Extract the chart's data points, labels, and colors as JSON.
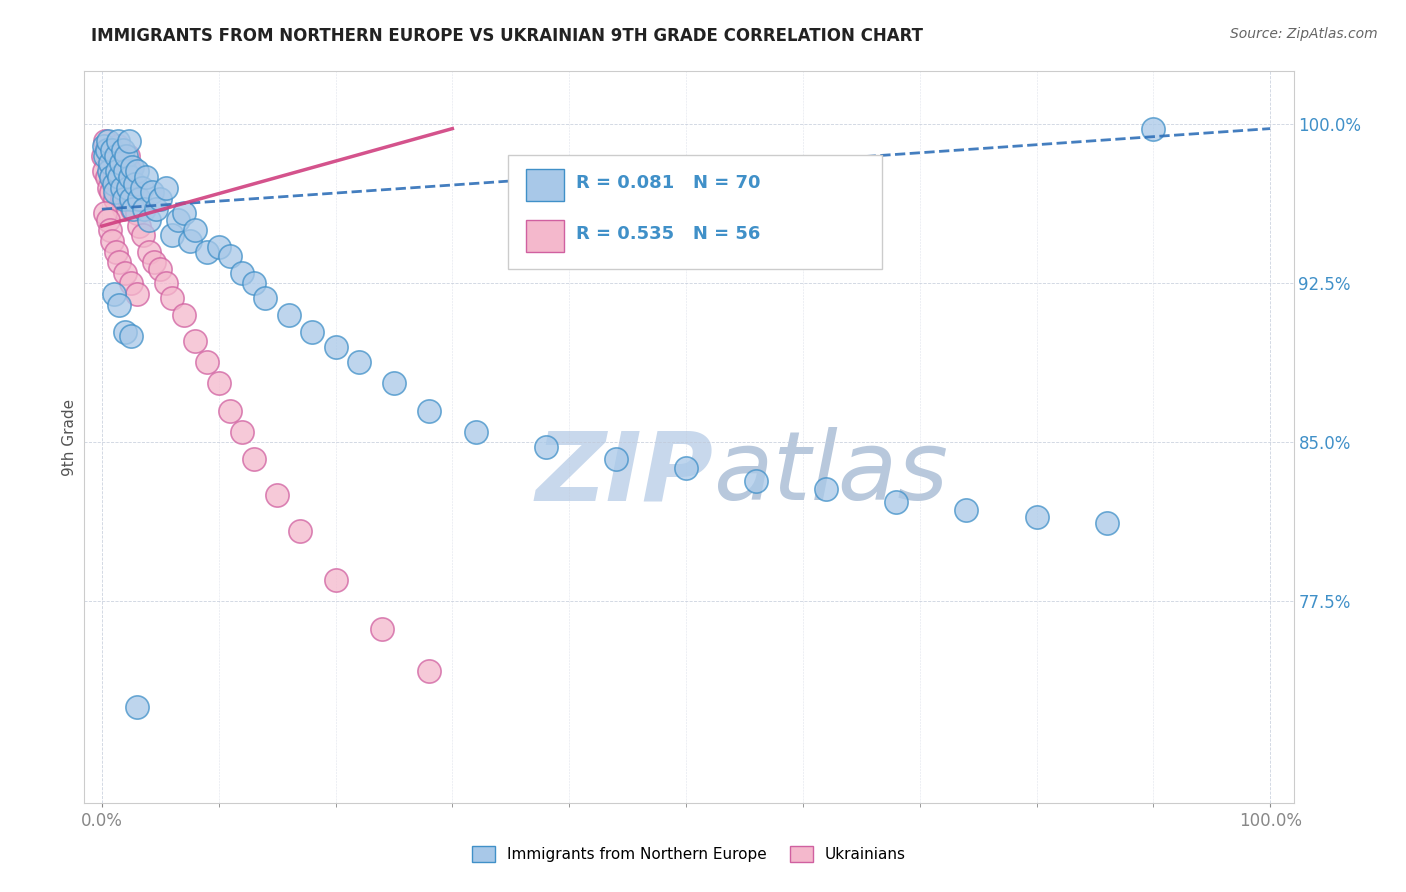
{
  "title": "IMMIGRANTS FROM NORTHERN EUROPE VS UKRAINIAN 9TH GRADE CORRELATION CHART",
  "source": "Source: ZipAtlas.com",
  "ylabel": "9th Grade",
  "R1": 0.081,
  "N1": 70,
  "R2": 0.535,
  "N2": 56,
  "color1": "#a8c8e8",
  "color2": "#f4b8cc",
  "edge_color1": "#4090c8",
  "edge_color2": "#d060a0",
  "trend_color1": "#3070b8",
  "trend_color2": "#d04080",
  "label_color": "#4090c8",
  "ytick_color": "#4090c8",
  "watermark_color": "#c8d8ec",
  "legend_label1": "Immigrants from Northern Europe",
  "legend_label2": "Ukrainians",
  "ytick_labels": [
    "100.0%",
    "92.5%",
    "85.0%",
    "77.5%"
  ],
  "ytick_values": [
    1.0,
    0.925,
    0.85,
    0.775
  ],
  "blue_x": [
    0.002,
    0.003,
    0.004,
    0.005,
    0.006,
    0.007,
    0.008,
    0.009,
    0.01,
    0.011,
    0.012,
    0.013,
    0.014,
    0.015,
    0.016,
    0.017,
    0.018,
    0.019,
    0.02,
    0.021,
    0.022,
    0.023,
    0.024,
    0.025,
    0.026,
    0.027,
    0.028,
    0.03,
    0.032,
    0.034,
    0.036,
    0.038,
    0.04,
    0.043,
    0.046,
    0.05,
    0.055,
    0.06,
    0.065,
    0.07,
    0.075,
    0.08,
    0.09,
    0.1,
    0.11,
    0.12,
    0.13,
    0.14,
    0.16,
    0.18,
    0.2,
    0.22,
    0.25,
    0.28,
    0.32,
    0.38,
    0.44,
    0.5,
    0.56,
    0.62,
    0.68,
    0.74,
    0.8,
    0.86,
    0.9,
    0.01,
    0.015,
    0.02,
    0.025,
    0.03
  ],
  "blue_y": [
    0.99,
    0.985,
    0.988,
    0.992,
    0.978,
    0.982,
    0.975,
    0.988,
    0.972,
    0.968,
    0.985,
    0.978,
    0.992,
    0.975,
    0.982,
    0.97,
    0.988,
    0.965,
    0.978,
    0.985,
    0.97,
    0.992,
    0.975,
    0.965,
    0.98,
    0.96,
    0.972,
    0.978,
    0.965,
    0.97,
    0.96,
    0.975,
    0.955,
    0.968,
    0.96,
    0.965,
    0.97,
    0.948,
    0.955,
    0.958,
    0.945,
    0.95,
    0.94,
    0.942,
    0.938,
    0.93,
    0.925,
    0.918,
    0.91,
    0.902,
    0.895,
    0.888,
    0.878,
    0.865,
    0.855,
    0.848,
    0.842,
    0.838,
    0.832,
    0.828,
    0.822,
    0.818,
    0.815,
    0.812,
    0.998,
    0.92,
    0.915,
    0.902,
    0.9,
    0.725
  ],
  "pink_x": [
    0.001,
    0.002,
    0.003,
    0.004,
    0.005,
    0.006,
    0.007,
    0.008,
    0.009,
    0.01,
    0.011,
    0.012,
    0.013,
    0.014,
    0.015,
    0.016,
    0.017,
    0.018,
    0.019,
    0.02,
    0.021,
    0.022,
    0.023,
    0.024,
    0.025,
    0.026,
    0.028,
    0.03,
    0.032,
    0.035,
    0.04,
    0.045,
    0.05,
    0.055,
    0.06,
    0.07,
    0.08,
    0.09,
    0.1,
    0.11,
    0.12,
    0.13,
    0.15,
    0.17,
    0.2,
    0.24,
    0.28,
    0.003,
    0.005,
    0.007,
    0.009,
    0.012,
    0.015,
    0.02,
    0.025,
    0.03
  ],
  "pink_y": [
    0.985,
    0.978,
    0.992,
    0.975,
    0.988,
    0.97,
    0.982,
    0.968,
    0.985,
    0.975,
    0.965,
    0.985,
    0.978,
    0.99,
    0.972,
    0.982,
    0.965,
    0.978,
    0.96,
    0.975,
    0.97,
    0.985,
    0.965,
    0.978,
    0.972,
    0.96,
    0.968,
    0.958,
    0.952,
    0.948,
    0.94,
    0.935,
    0.932,
    0.925,
    0.918,
    0.91,
    0.898,
    0.888,
    0.878,
    0.865,
    0.855,
    0.842,
    0.825,
    0.808,
    0.785,
    0.762,
    0.742,
    0.958,
    0.955,
    0.95,
    0.945,
    0.94,
    0.935,
    0.93,
    0.925,
    0.92
  ],
  "blue_trend_x": [
    0.0,
    1.0
  ],
  "blue_trend_y": [
    0.96,
    0.998
  ],
  "pink_trend_x": [
    0.0,
    0.3
  ],
  "pink_trend_y": [
    0.952,
    0.998
  ],
  "xlim": [
    -0.015,
    1.02
  ],
  "ylim": [
    0.68,
    1.025
  ]
}
